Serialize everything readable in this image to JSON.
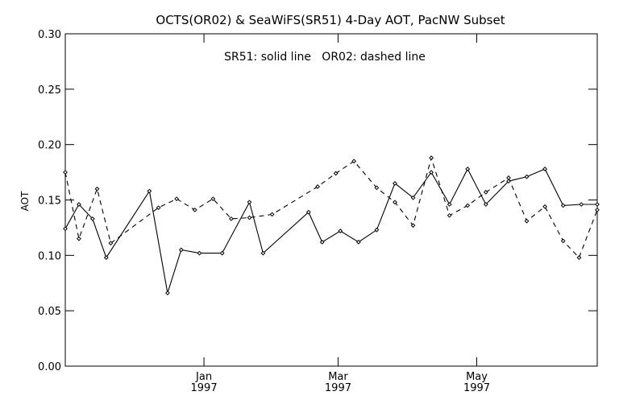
{
  "chart_data": {
    "type": "line",
    "title": "OCTS(OR02) & SeaWiFS(SR51) 4-Day AOT, PacNW Subset",
    "annotation": "SR51: solid line   OR02: dashed line",
    "xlabel": "",
    "ylabel": "AOT",
    "xlim": [
      "1996-11-01",
      "1997-06-23"
    ],
    "ylim": [
      0,
      0.3
    ],
    "yticks": [
      0,
      0.05,
      0.1,
      0.15,
      0.2,
      0.25,
      0.3
    ],
    "ytick_labels": [
      "0.00",
      "0.05",
      "0.10",
      "0.15",
      "0.20",
      "0.25",
      "0.30"
    ],
    "xticks": [
      {
        "date": "1997-01-01",
        "month": "Jan",
        "year": "1997"
      },
      {
        "date": "1997-03-01",
        "month": "Mar",
        "year": "1997"
      },
      {
        "date": "1997-05-01",
        "month": "May",
        "year": "1997"
      }
    ],
    "grid": false,
    "series": [
      {
        "name": "SR51",
        "style": "solid",
        "color": "#000000",
        "x": [
          "1996-11-01",
          "1996-11-07",
          "1996-11-13",
          "1996-11-19",
          "1996-12-08",
          "1996-12-16",
          "1996-12-22",
          "1996-12-30",
          "1997-01-09",
          "1997-01-21",
          "1997-01-27",
          "1997-02-16",
          "1997-02-22",
          "1997-03-02",
          "1997-03-10",
          "1997-03-18",
          "1997-03-26",
          "1997-04-03",
          "1997-04-11",
          "1997-04-19",
          "1997-04-27",
          "1997-05-05",
          "1997-05-15",
          "1997-05-23",
          "1997-05-31",
          "1997-06-08",
          "1997-06-16",
          "1997-06-23"
        ],
        "y": [
          0.124,
          0.146,
          0.133,
          0.098,
          0.158,
          0.066,
          0.105,
          0.102,
          0.102,
          0.148,
          0.102,
          0.139,
          0.112,
          0.122,
          0.112,
          0.123,
          0.165,
          0.152,
          0.175,
          0.146,
          0.178,
          0.146,
          0.167,
          0.171,
          0.178,
          0.145,
          0.146,
          0.146
        ]
      },
      {
        "name": "OR02",
        "style": "dashed",
        "color": "#000000",
        "x": [
          "1996-11-01",
          "1996-11-07",
          "1996-11-15",
          "1996-11-21",
          "1996-12-12",
          "1996-12-20",
          "1996-12-28",
          "1997-01-05",
          "1997-01-13",
          "1997-01-21",
          "1997-01-31",
          "1997-02-20",
          "1997-02-28",
          "1997-03-08",
          "1997-03-18",
          "1997-03-26",
          "1997-04-03",
          "1997-04-11",
          "1997-04-19",
          "1997-04-27",
          "1997-05-05",
          "1997-05-15",
          "1997-05-23",
          "1997-05-31",
          "1997-06-08",
          "1997-06-15",
          "1997-06-23"
        ],
        "y": [
          0.175,
          0.115,
          0.16,
          0.111,
          0.143,
          0.151,
          0.141,
          0.151,
          0.133,
          0.134,
          0.137,
          0.162,
          0.174,
          0.185,
          0.161,
          0.148,
          0.127,
          0.188,
          0.136,
          0.145,
          0.157,
          0.17,
          0.131,
          0.144,
          0.113,
          0.098,
          0.141
        ]
      }
    ]
  }
}
